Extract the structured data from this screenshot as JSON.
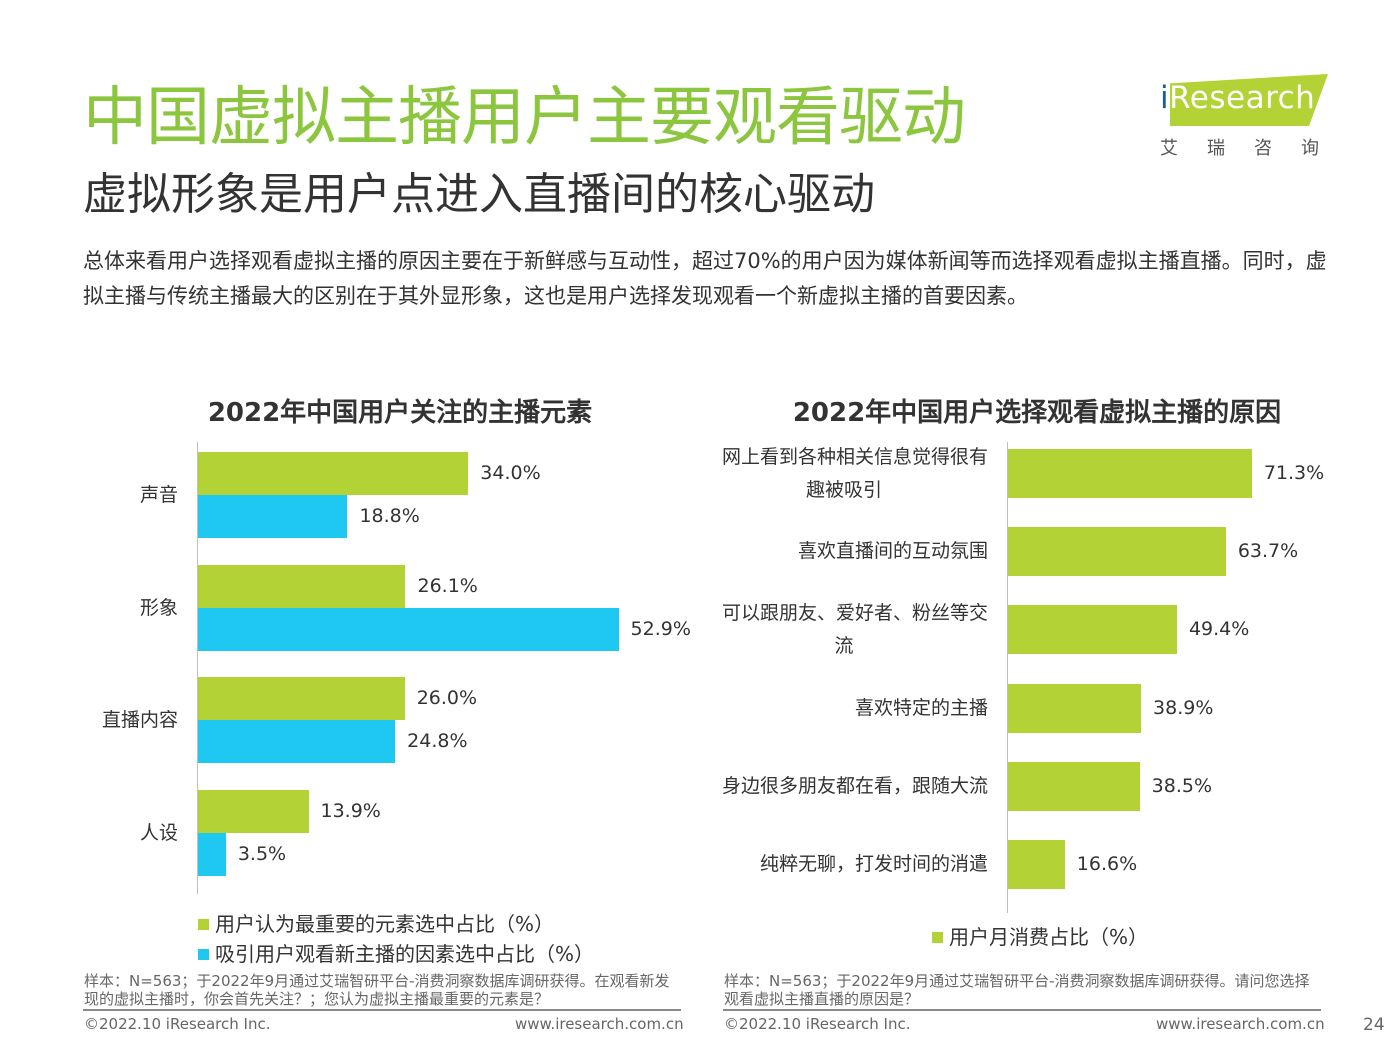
{
  "header": {
    "title": "中国虚拟主播用户主要观看驱动",
    "subtitle": "虚拟形象是用户点进入直播间的核心驱动",
    "intro": "总体来看用户选择观看虚拟主播的原因主要在于新鲜感与互动性，超过70%的用户因为媒体新闻等而选择观看虚拟主播直播。同时，虚拟主播与传统主播最大的区别在于其外显形象，这也是用户选择发现观看一个新虚拟主播的首要因素。"
  },
  "logo": {
    "brand_i": "i",
    "brand_rest": "Research",
    "cn": "艾瑞咨询"
  },
  "colors": {
    "green": "#b2d235",
    "blue": "#1ec8f0",
    "title_green": "#8cc63f"
  },
  "chart_data": [
    {
      "type": "bar",
      "orientation": "horizontal",
      "title": "2022年中国用户关注的主播元素",
      "categories": [
        "声音",
        "形象",
        "直播内容",
        "人设"
      ],
      "series": [
        {
          "name": "用户认为最重要的元素选中占比（%）",
          "values": [
            34.0,
            26.1,
            26.0,
            13.9
          ],
          "labels": [
            "34.0%",
            "26.1%",
            "26.0%",
            "13.9%"
          ]
        },
        {
          "name": "吸引用户观看新主播的因素选中占比（%）",
          "values": [
            18.8,
            52.9,
            24.8,
            3.5
          ],
          "labels": [
            "18.8%",
            "52.9%",
            "24.8%",
            "3.5%"
          ]
        }
      ],
      "legend_position": "bottom-left",
      "grid": false
    },
    {
      "type": "bar",
      "orientation": "horizontal",
      "title": "2022年中国用户选择观看虚拟主播的原因",
      "categories": [
        "网上看到各种相关信息觉得很有趣被吸引",
        "喜欢直播间的互动氛围",
        "可以跟朋友、爱好者、粉丝等交流",
        "喜欢特定的主播",
        "身边很多朋友都在看，跟随大流",
        "纯粹无聊，打发时间的消遣"
      ],
      "category_lines": [
        [
          "网上看到各种相关信息觉得很有",
          "趣被吸引"
        ],
        [
          "喜欢直播间的互动氛围"
        ],
        [
          "可以跟朋友、爱好者、粉丝等交",
          "流"
        ],
        [
          "喜欢特定的主播"
        ],
        [
          "身边很多朋友都在看，跟随大流"
        ],
        [
          "纯粹无聊，打发时间的消遣"
        ]
      ],
      "series": [
        {
          "name": "用户月消费占比（%）",
          "values": [
            71.3,
            63.7,
            49.4,
            38.9,
            38.5,
            16.6
          ],
          "labels": [
            "71.3%",
            "63.7%",
            "49.4%",
            "38.9%",
            "38.5%",
            "16.6%"
          ]
        }
      ],
      "legend_position": "bottom-center",
      "grid": false
    }
  ],
  "notes": {
    "left": "样本：N=563；于2022年9月通过艾瑞智研平台-消费洞察数据库调研获得。在观看新发现的虚拟主播时，你会首先关注？；您认为虚拟主播最重要的元素是？",
    "right": "样本：N=563；于2022年9月通过艾瑞智研平台-消费洞察数据库调研获得。请问您选择观看虚拟主播直播的原因是？"
  },
  "footer": {
    "left_copyright": "©2022.10 iResearch Inc.",
    "left_url": "www.iresearch.com.cn",
    "right_copyright": "©2022.10 iResearch Inc.",
    "right_url": "www.iresearch.com.cn",
    "page_number": "24"
  }
}
